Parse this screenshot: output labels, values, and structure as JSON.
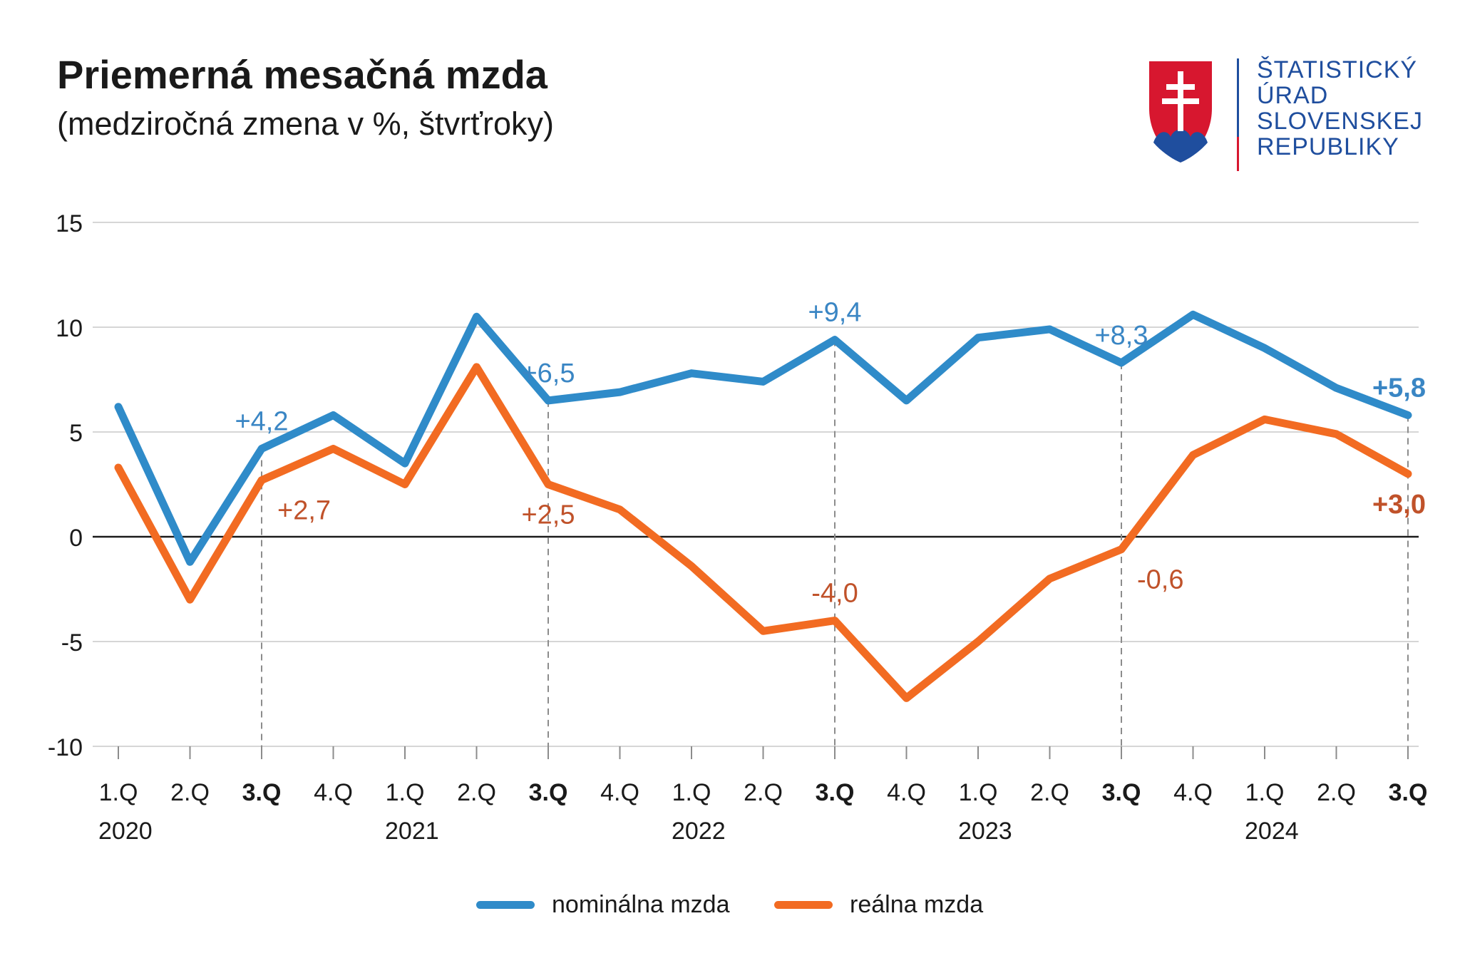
{
  "header": {
    "title": "Priemerná mesačná mzda",
    "subtitle": "(medziročná zmena v %, štvrťroky)"
  },
  "logo": {
    "lines": [
      "ŠTATISTICKÝ",
      "ÚRAD",
      "SLOVENSKEJ",
      "REPUBLIKY"
    ],
    "color_text": "#1f4e9e",
    "color_red": "#d7172f",
    "color_blue": "#1f4e9e"
  },
  "chart_data": {
    "type": "line",
    "title": "Priemerná mesačná mzda",
    "subtitle": "(medziročná zmena v %, štvrťroky)",
    "ylim": [
      -10,
      15
    ],
    "yticks": [
      "15",
      "10",
      "5",
      "0",
      "-5",
      "-10"
    ],
    "grid": true,
    "categories": [
      "1.Q",
      "2.Q",
      "3.Q",
      "4.Q",
      "1.Q",
      "2.Q",
      "3.Q",
      "4.Q",
      "1.Q",
      "2.Q",
      "3.Q",
      "4.Q",
      "1.Q",
      "2.Q",
      "3.Q",
      "4.Q",
      "1.Q",
      "2.Q",
      "3.Q"
    ],
    "bold_categories": [
      2,
      6,
      10,
      14,
      18
    ],
    "years": [
      {
        "label": "2020",
        "index": 0
      },
      {
        "label": "2021",
        "index": 4
      },
      {
        "label": "2022",
        "index": 8
      },
      {
        "label": "2023",
        "index": 12
      },
      {
        "label": "2024",
        "index": 16
      }
    ],
    "dashed_markers": [
      2,
      6,
      10,
      14,
      18
    ],
    "legend_position": "bottom",
    "series": [
      {
        "name": "nominálna mzda",
        "color": "#2f8bc9",
        "label_color": "#3a86c4",
        "values": [
          6.2,
          -1.2,
          4.2,
          5.8,
          3.5,
          10.5,
          6.5,
          6.9,
          7.8,
          7.4,
          9.4,
          6.5,
          9.5,
          9.9,
          8.3,
          10.6,
          9.0,
          7.1,
          5.8
        ],
        "labels": [
          {
            "index": 2,
            "text": "+4,2",
            "pos": "above",
            "bold": false
          },
          {
            "index": 6,
            "text": "+6,5",
            "pos": "above",
            "bold": false
          },
          {
            "index": 10,
            "text": "+9,4",
            "pos": "above",
            "bold": false
          },
          {
            "index": 14,
            "text": "+8,3",
            "pos": "above",
            "bold": false
          },
          {
            "index": 18,
            "text": "+5,8",
            "pos": "above",
            "bold": true
          }
        ]
      },
      {
        "name": "reálna mzda",
        "color": "#f26b22",
        "label_color": "#c0522a",
        "values": [
          3.3,
          -3.0,
          2.7,
          4.2,
          2.5,
          8.1,
          2.5,
          1.3,
          -1.4,
          -4.5,
          -4.0,
          -7.7,
          -5.0,
          -2.0,
          -0.6,
          3.9,
          5.6,
          4.9,
          3.0
        ],
        "labels": [
          {
            "index": 2,
            "text": "+2,7",
            "pos": "below-right",
            "bold": false
          },
          {
            "index": 6,
            "text": "+2,5",
            "pos": "below",
            "bold": false
          },
          {
            "index": 10,
            "text": "-4,0",
            "pos": "above",
            "bold": false
          },
          {
            "index": 14,
            "text": "-0,6",
            "pos": "below-right",
            "bold": false
          },
          {
            "index": 18,
            "text": "+3,0",
            "pos": "below",
            "bold": true
          }
        ]
      }
    ]
  }
}
